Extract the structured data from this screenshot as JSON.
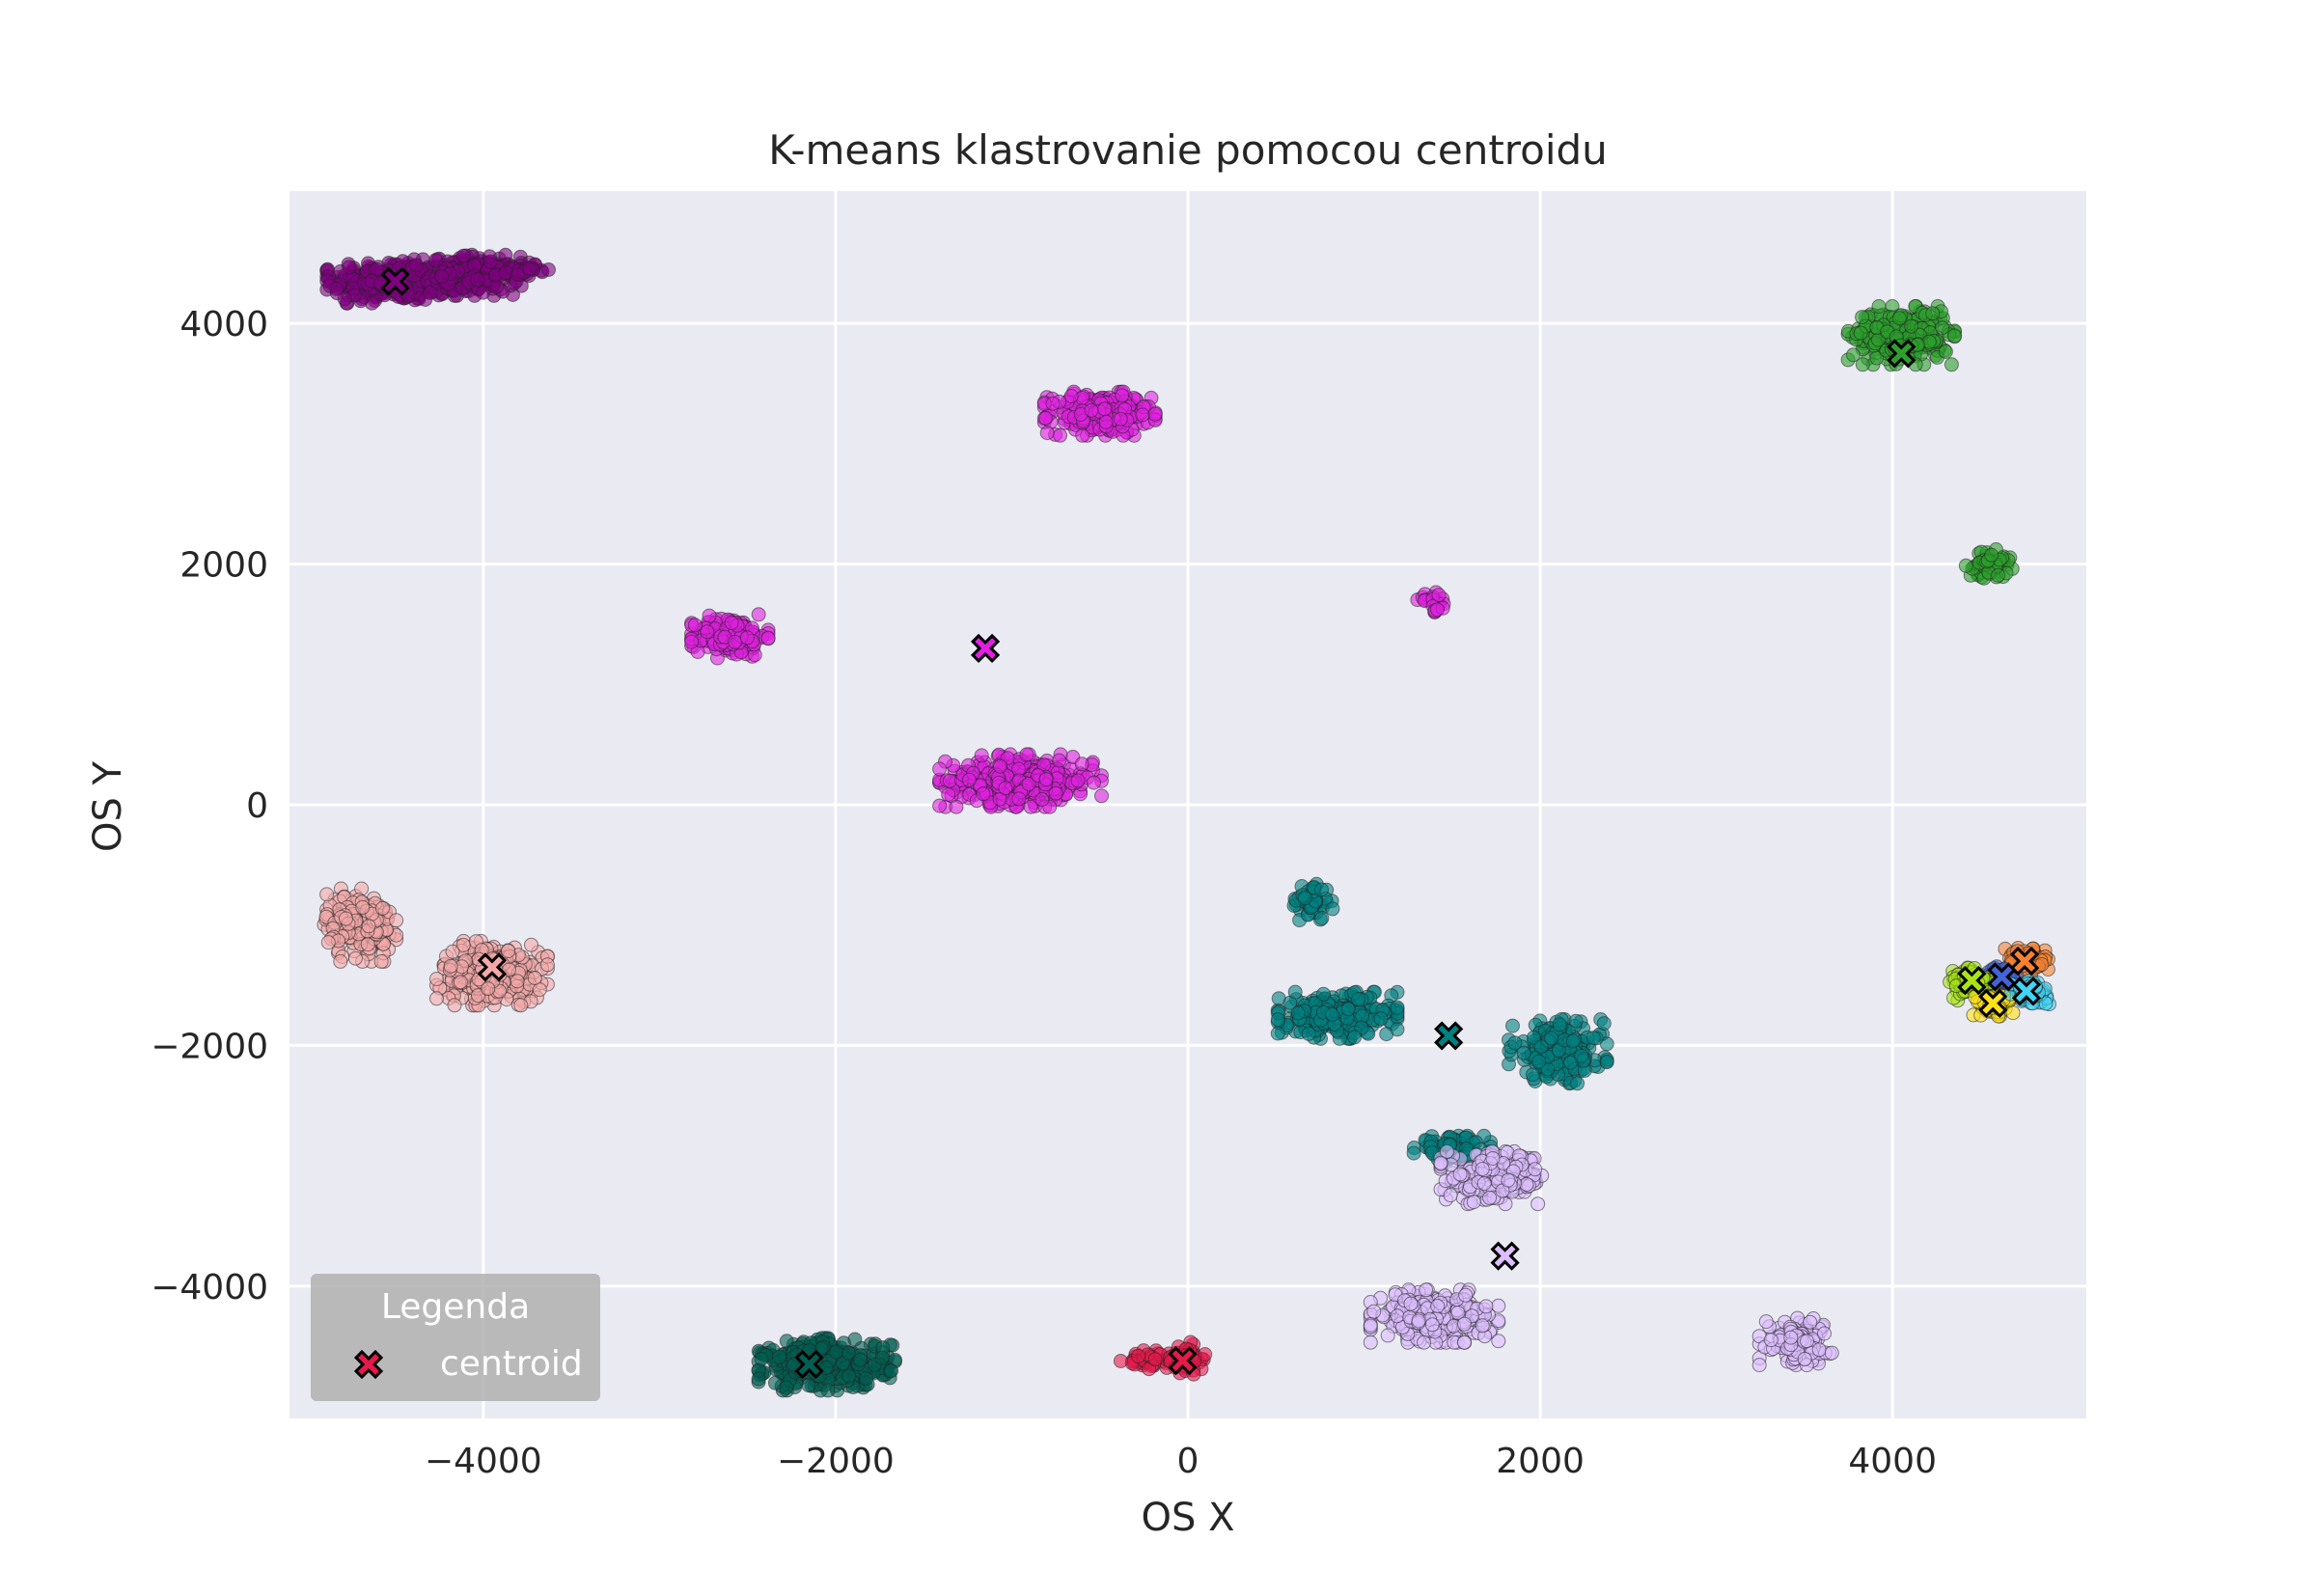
{
  "chart_data": {
    "type": "scatter",
    "title": "K-means klastrovanie pomocou centroidu",
    "xlabel": "OS X",
    "ylabel": "OS Y",
    "xlim": [
      -5100,
      5100
    ],
    "ylim": [
      -5100,
      5100
    ],
    "xticks": [
      -4000,
      -2000,
      0,
      2000,
      4000
    ],
    "yticks": [
      -4000,
      -2000,
      0,
      2000,
      4000
    ],
    "xtick_labels": [
      "−4000",
      "−2000",
      "0",
      "2000",
      "4000"
    ],
    "ytick_labels": [
      "−4000",
      "−2000",
      "0",
      "2000",
      "4000"
    ],
    "grid": true,
    "background": "#eaeaf2",
    "legend": {
      "title": "Legenda",
      "entry": "centroid",
      "marker_color": "#e6194b",
      "placement": "lower-left"
    },
    "clusters": [
      {
        "color": "#800080",
        "centroid": [
          -4500,
          4350
        ],
        "blobs": [
          [
            -4500,
            4350,
            320,
            150,
            380
          ],
          [
            -4050,
            4400,
            220,
            140,
            200
          ],
          [
            -3750,
            4450,
            100,
            50,
            25
          ]
        ]
      },
      {
        "color": "#e01fe0",
        "centroid": [
          -1150,
          1300
        ],
        "blobs": [
          [
            -500,
            3250,
            260,
            150,
            260
          ],
          [
            -2600,
            1400,
            180,
            150,
            170
          ],
          [
            -950,
            200,
            380,
            180,
            340
          ],
          [
            1400,
            1680,
            80,
            70,
            25
          ]
        ]
      },
      {
        "color": "#2ca02c",
        "centroid": [
          4050,
          3750
        ],
        "blobs": [
          [
            4050,
            3900,
            250,
            200,
            260
          ],
          [
            4550,
            2000,
            110,
            100,
            55
          ]
        ]
      },
      {
        "color": "#f4a9a8",
        "centroid": [
          -3950,
          -1350
        ],
        "blobs": [
          [
            -4700,
            -1000,
            170,
            250,
            190
          ],
          [
            -3950,
            -1400,
            260,
            220,
            300
          ]
        ]
      },
      {
        "color": "#008080",
        "centroid": [
          1480,
          -1920
        ],
        "blobs": [
          [
            700,
            -800,
            100,
            140,
            50
          ],
          [
            850,
            -1750,
            280,
            160,
            300
          ],
          [
            2100,
            -2050,
            230,
            220,
            240
          ],
          [
            1500,
            -2850,
            180,
            80,
            90
          ]
        ]
      },
      {
        "color": "#dcbeff",
        "centroid": [
          1800,
          -3750
        ],
        "blobs": [
          [
            1750,
            -3100,
            260,
            180,
            220
          ],
          [
            1400,
            -4250,
            300,
            180,
            260
          ],
          [
            3450,
            -4450,
            170,
            170,
            110
          ]
        ]
      },
      {
        "color": "#005f52",
        "centroid": [
          -2150,
          -4650
        ],
        "blobs": [
          [
            -2050,
            -4650,
            320,
            180,
            360
          ]
        ]
      },
      {
        "color": "#e6194b",
        "centroid": [
          -30,
          -4620
        ],
        "blobs": [
          [
            -200,
            -4620,
            150,
            70,
            45
          ],
          [
            0,
            -4600,
            80,
            110,
            40
          ]
        ]
      },
      {
        "color": "#f58231",
        "centroid": [
          4750,
          -1300
        ],
        "blobs": [
          [
            4750,
            -1300,
            110,
            90,
            80
          ]
        ]
      },
      {
        "color": "#4363d8",
        "centroid": [
          4620,
          -1430
        ],
        "blobs": [
          [
            4620,
            -1430,
            90,
            70,
            50
          ]
        ]
      },
      {
        "color": "#a9e519",
        "centroid": [
          4450,
          -1460
        ],
        "blobs": [
          [
            4450,
            -1480,
            110,
            120,
            90
          ]
        ]
      },
      {
        "color": "#ffe119",
        "centroid": [
          4570,
          -1650
        ],
        "blobs": [
          [
            4580,
            -1660,
            100,
            80,
            70
          ]
        ]
      },
      {
        "color": "#42d4f4",
        "centroid": [
          4760,
          -1550
        ],
        "blobs": [
          [
            4780,
            -1560,
            90,
            80,
            70
          ]
        ]
      }
    ]
  }
}
